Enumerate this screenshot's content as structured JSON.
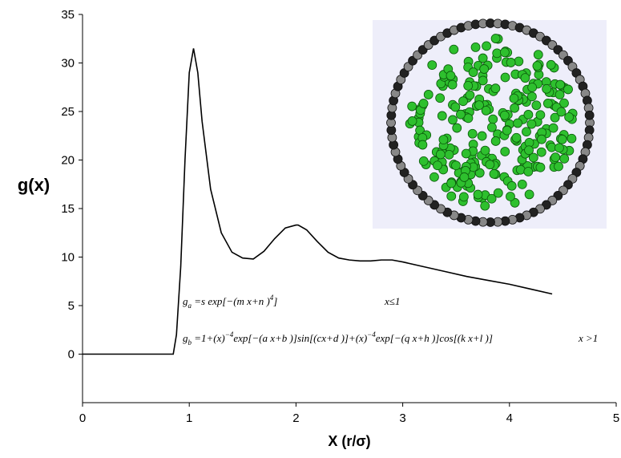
{
  "chart_data": {
    "type": "line",
    "ylabel": "g(x)",
    "xlabel": "X (r/σ)",
    "x": [
      0,
      0.5,
      0.85,
      0.88,
      0.92,
      0.96,
      1.0,
      1.04,
      1.08,
      1.12,
      1.2,
      1.3,
      1.4,
      1.5,
      1.6,
      1.7,
      1.8,
      1.9,
      2.0,
      2.02,
      2.1,
      2.2,
      2.3,
      2.4,
      2.5,
      2.6,
      2.7,
      2.8,
      2.9,
      3.0,
      3.2,
      3.4,
      3.6,
      3.8,
      4.0,
      4.2,
      4.4
    ],
    "values": [
      0,
      0,
      0,
      2,
      9,
      20,
      29,
      31.5,
      29,
      24,
      17,
      12.5,
      10.5,
      9.9,
      9.8,
      10.6,
      11.9,
      13,
      13.3,
      13.3,
      12.8,
      11.6,
      10.5,
      9.9,
      9.7,
      9.6,
      9.6,
      9.7,
      9.7,
      9.5,
      9.0,
      8.5,
      8.0,
      7.6,
      7.2,
      6.7,
      6.2
    ],
    "color": "#000000",
    "xlim": [
      0,
      5
    ],
    "xticks": [
      0,
      1,
      2,
      3,
      4,
      5
    ],
    "ylim": [
      -5,
      35
    ],
    "yticks": [
      0,
      5,
      10,
      15,
      20,
      25,
      30,
      35
    ],
    "equations": [
      {
        "parts": [
          "g",
          {
            "sub": "a"
          },
          " =s  exp[−(m x+n )",
          {
            "sup": "4"
          },
          "]"
        ],
        "condition": "x≤1"
      },
      {
        "parts": [
          "g",
          {
            "sub": "b"
          },
          " =1+(x)",
          {
            "sup": "−4"
          },
          "exp[−(a x+b )]sin[(cx+d )]+(x)",
          {
            "sup": "−4"
          },
          "exp[−(q x+h )]cos[(k x+l )]"
        ],
        "condition": "x >1"
      }
    ]
  }
}
